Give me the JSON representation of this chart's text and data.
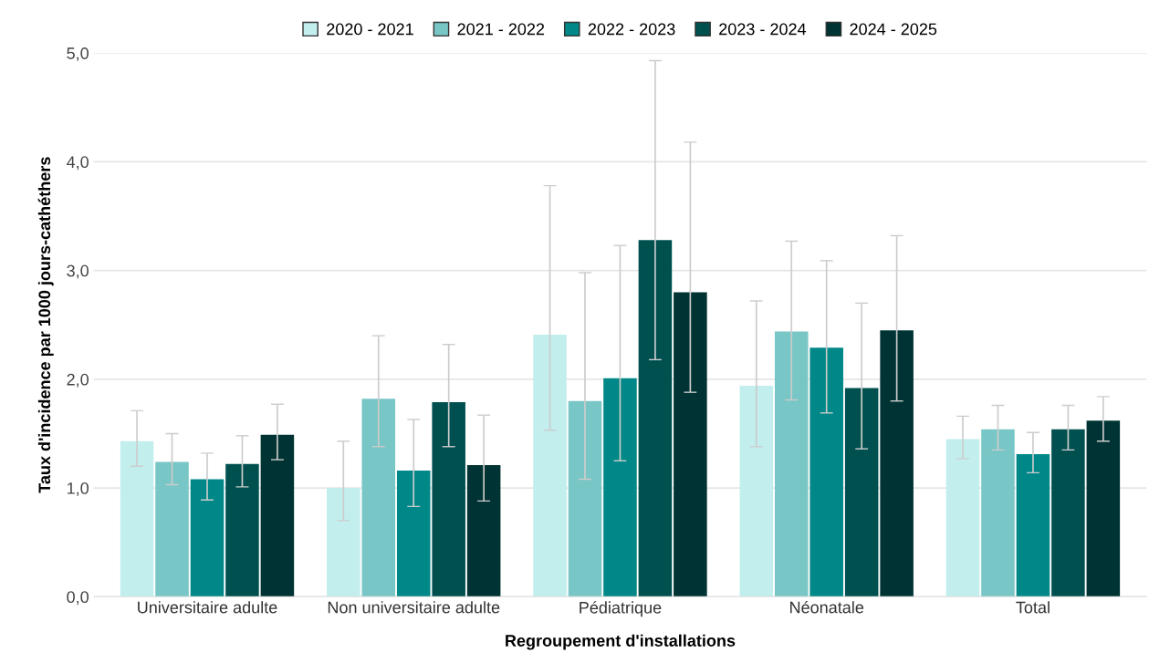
{
  "chart_data": {
    "type": "bar",
    "categories": [
      "Universitaire adulte",
      "Non universitaire adulte",
      "Pédiatrique",
      "Néonatale",
      "Total"
    ],
    "xlabel": "Regroupement d'installations",
    "ylabel": "Taux d'incidence par 1000 jours-cathéthers",
    "ylim": [
      0,
      5
    ],
    "yticks": [
      {
        "value": 0,
        "label": "0,0"
      },
      {
        "value": 1,
        "label": "1,0"
      },
      {
        "value": 2,
        "label": "2,0"
      },
      {
        "value": 3,
        "label": "3,0"
      },
      {
        "value": 4,
        "label": "4,0"
      },
      {
        "value": 5,
        "label": "5,0"
      }
    ],
    "grid": "y",
    "legend": "top",
    "series": [
      {
        "name": "2020 - 2021",
        "color": "#c2eeee",
        "values": [
          1.43,
          1.0,
          2.41,
          1.94,
          1.45
        ],
        "errors": [
          [
            1.2,
            1.71
          ],
          [
            0.7,
            1.43
          ],
          [
            1.53,
            3.78
          ],
          [
            1.38,
            2.72
          ],
          [
            1.27,
            1.66
          ]
        ]
      },
      {
        "name": "2021 - 2022",
        "color": "#79c6c6",
        "values": [
          1.24,
          1.82,
          1.8,
          2.44,
          1.54
        ],
        "errors": [
          [
            1.03,
            1.5
          ],
          [
            1.38,
            2.4
          ],
          [
            1.08,
            2.98
          ],
          [
            1.81,
            3.27
          ],
          [
            1.35,
            1.76
          ]
        ]
      },
      {
        "name": "2022 - 2023",
        "color": "#008787",
        "values": [
          1.08,
          1.16,
          2.01,
          2.29,
          1.31
        ],
        "errors": [
          [
            0.89,
            1.32
          ],
          [
            0.83,
            1.63
          ],
          [
            1.25,
            3.23
          ],
          [
            1.69,
            3.09
          ],
          [
            1.14,
            1.51
          ]
        ]
      },
      {
        "name": "2023 - 2024",
        "color": "#005050",
        "values": [
          1.22,
          1.79,
          3.28,
          1.92,
          1.54
        ],
        "errors": [
          [
            1.01,
            1.48
          ],
          [
            1.38,
            2.32
          ],
          [
            2.18,
            4.93
          ],
          [
            1.36,
            2.7
          ],
          [
            1.35,
            1.76
          ]
        ]
      },
      {
        "name": "2024 - 2025",
        "color": "#003333",
        "values": [
          1.49,
          1.21,
          2.8,
          2.45,
          1.62
        ],
        "errors": [
          [
            1.26,
            1.77
          ],
          [
            0.88,
            1.67
          ],
          [
            1.88,
            4.18
          ],
          [
            1.8,
            3.32
          ],
          [
            1.43,
            1.84
          ]
        ]
      }
    ]
  }
}
